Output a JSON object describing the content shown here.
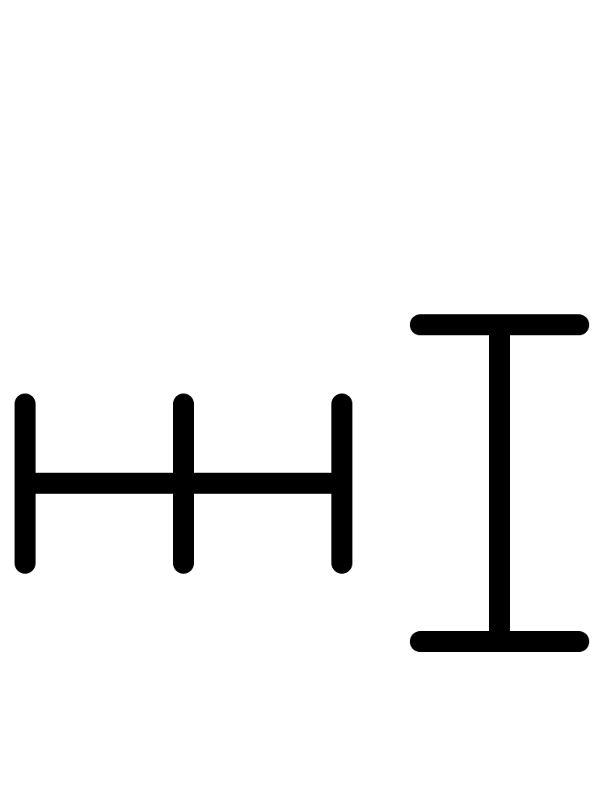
{
  "canvas": {
    "background": "#ffffff",
    "ink": "#000000"
  },
  "icons": [
    {
      "name": "ruler-tick-icon"
    },
    {
      "name": "i-beam-cursor-icon"
    }
  ]
}
